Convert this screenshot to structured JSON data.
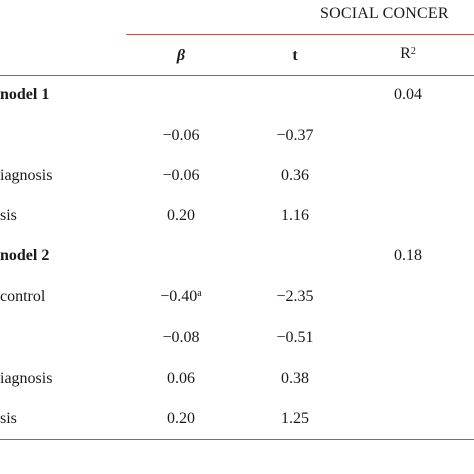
{
  "header": {
    "group_title": "SOCIAL CONCER",
    "col_beta": "β",
    "col_t": "t",
    "col_r2_base": "R",
    "col_r2_sup": "2"
  },
  "rows": [
    {
      "label": "nodel 1",
      "bold": true,
      "beta": "",
      "t": "",
      "r2": "0.04"
    },
    {
      "label": "",
      "bold": false,
      "beta": "−0.06",
      "t": "−0.37",
      "r2": ""
    },
    {
      "label": "iagnosis",
      "bold": false,
      "beta": "−0.06",
      "t": "0.36",
      "r2": ""
    },
    {
      "label": "sis",
      "bold": false,
      "beta": "0.20",
      "t": "1.16",
      "r2": ""
    },
    {
      "label": "nodel 2",
      "bold": true,
      "beta": "",
      "t": "",
      "r2": "0.18"
    },
    {
      "label": "control",
      "bold": false,
      "beta": "−0.40",
      "beta_sup": "a",
      "t": "−2.35",
      "r2": ""
    },
    {
      "label": "",
      "bold": false,
      "beta": "−0.08",
      "t": "−0.51",
      "r2": ""
    },
    {
      "label": "iagnosis",
      "bold": false,
      "beta": "0.06",
      "t": "0.38",
      "r2": ""
    },
    {
      "label": "sis",
      "bold": false,
      "beta": "0.20",
      "t": "1.25",
      "r2": ""
    }
  ]
}
